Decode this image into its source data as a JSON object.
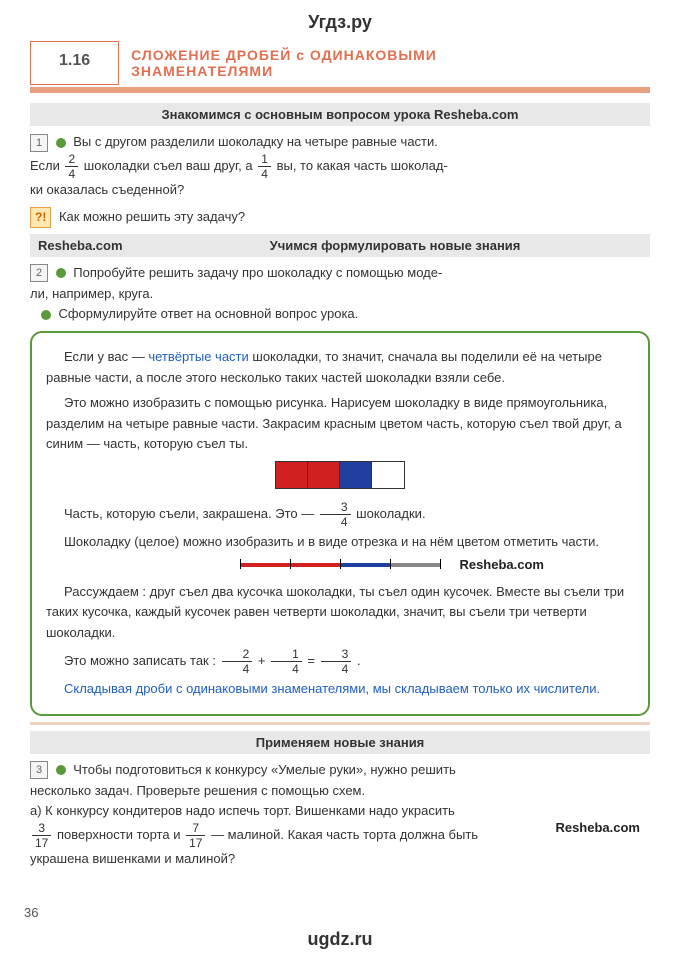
{
  "watermarks": {
    "top": "Угдз.ру",
    "bottom": "ugdz.ru"
  },
  "header": {
    "number": "1.16",
    "title_line1": "СЛОЖЕНИЕ ДРОБЕЙ с ОДИНАКОВЫМИ",
    "title_line2": "ЗНАМЕНАТЕЛЯМИ"
  },
  "headings": {
    "h1": "Знакомимся с основным вопросом урока Resheba.com",
    "h2_left": "Resheba.com",
    "h2_right": "Учимся формулировать новые знания",
    "h3": "Применяем новые знания"
  },
  "task1": {
    "num": "1",
    "line1a": "Вы с другом разделили шоколадку на четыре равные части.",
    "line2a": "Если ",
    "f1n": "2",
    "f1d": "4",
    "line2b": " шоколадки съел ваш друг, а ",
    "f2n": "1",
    "f2d": "4",
    "line2c": " вы, то какая часть шоколад-",
    "line3": "ки оказалась съеденной?"
  },
  "question": {
    "mark": "?!",
    "text": "Как можно решить эту задачу?"
  },
  "task2": {
    "num": "2",
    "line1": "Попробуйте решить задачу про шоколадку с помощью моде-",
    "line2": "ли, например, круга.",
    "line3": "Сформулируйте ответ на основной вопрос урока."
  },
  "greenbox": {
    "p1a": "Если у вас — ",
    "p1_blue": "четвёртые части",
    "p1b": " шоколадки, то значит, сначала вы поделили её на четыре равные части, а после этого несколько таких частей шоколадки взяли себе.",
    "p2": "Это можно изобразить с помощью рисунка. Нарисуем шоколадку в виде прямоугольника, разделим на четыре равные части. Закрасим красным цветом часть, которую съел твой друг, а синим — часть, которую съел ты.",
    "choco_colors": [
      "#d02020",
      "#d02020",
      "#2040a0",
      "#ffffff"
    ],
    "p3a": "Часть, которую съели, закрашена. Это — ",
    "f3n": "3",
    "f3d": "4",
    "p3b": " шоколадки.",
    "p4": "Шоколадку (целое) можно изобразить и в виде отрезка и на нём цветом отметить части.",
    "seg_colors": [
      "#d02020",
      "#d02020",
      "#2040a0",
      "#888"
    ],
    "resheba1": "Resheba.com",
    "p5": "Рассуждаем : друг съел два кусочка шоколадки, ты съел один кусочек. Вместе вы съели три таких кусочка, каждый кусочек равен четверти шоколадки, значит, вы съели три четверти шоколадки.",
    "p6a": "Это можно записать так : ",
    "eq_f1n": "2",
    "eq_f1d": "4",
    "eq_plus": " + ",
    "eq_f2n": "1",
    "eq_f2d": "4",
    "eq_eq": "  =  ",
    "eq_f3n": "3",
    "eq_f3d": "4",
    "eq_dot": "  .",
    "p7": "Складывая дроби с одинаковыми знаменателями, мы складываем только их числители."
  },
  "task3": {
    "num": "3",
    "line1": "Чтобы подготовиться к конкурсу «Умелые руки», нужно решить",
    "line2": "несколько задач. Проверьте решения с помощью схем.",
    "line_a1": "а) К конкурсу кондитеров надо испечь торт. Вишенками надо украсить",
    "resheba2": "Resheba.com",
    "fa_n": "3",
    "fa_d": "17",
    "line_a2a": " поверхности торта и ",
    "fb_n": "7",
    "fb_d": "17",
    "line_a2b": " — малиной. Какая часть торта должна быть",
    "line_a3": "украшена вишенками и малиной?"
  },
  "page": "36"
}
